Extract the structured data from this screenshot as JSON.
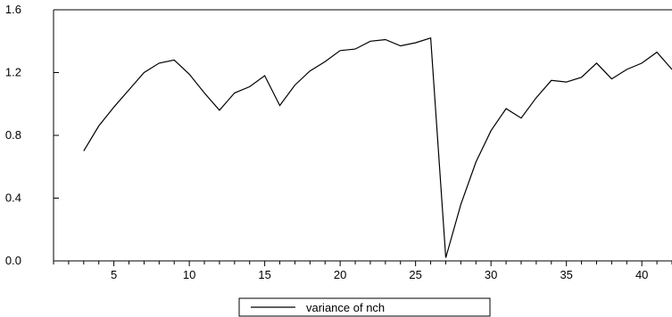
{
  "chart_data": {
    "type": "line",
    "title": "",
    "xlabel": "",
    "ylabel": "",
    "xlim": [
      1,
      42
    ],
    "ylim": [
      0.0,
      1.6
    ],
    "x_ticks": [
      5,
      10,
      15,
      20,
      25,
      30,
      35,
      40
    ],
    "y_ticks": [
      0.0,
      0.4,
      0.8,
      1.2,
      1.6
    ],
    "y_tick_labels": [
      "0.0",
      "0.4",
      "0.8",
      "1.2",
      "1.6"
    ],
    "grid": false,
    "legend_position": "bottom-center",
    "series": [
      {
        "name": "variance of nch",
        "color": "#000000",
        "x": [
          3,
          4,
          5,
          6,
          7,
          8,
          9,
          10,
          11,
          12,
          13,
          14,
          15,
          16,
          17,
          18,
          19,
          20,
          21,
          22,
          23,
          24,
          25,
          26,
          27,
          28,
          29,
          30,
          31,
          32,
          33,
          34,
          35,
          36,
          37,
          38,
          39,
          40,
          41,
          42
        ],
        "y": [
          0.7,
          0.86,
          0.98,
          1.09,
          1.2,
          1.26,
          1.28,
          1.19,
          1.07,
          0.96,
          1.07,
          1.11,
          1.18,
          0.99,
          1.12,
          1.21,
          1.27,
          1.34,
          1.35,
          1.4,
          1.41,
          1.37,
          1.39,
          1.42,
          0.02,
          0.36,
          0.63,
          0.83,
          0.97,
          0.91,
          1.04,
          1.15,
          1.14,
          1.17,
          1.26,
          1.16,
          1.22,
          1.26,
          1.33,
          1.22
        ]
      }
    ]
  }
}
